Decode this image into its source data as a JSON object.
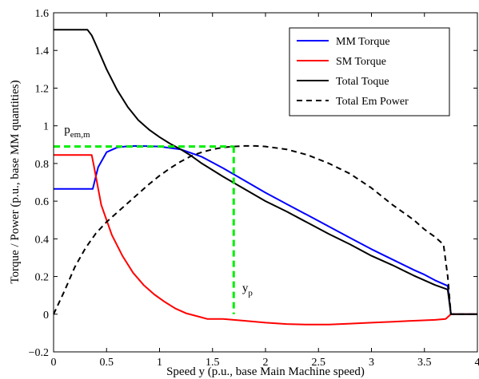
{
  "chart_data": {
    "type": "line",
    "xlabel": "Speed y (p.u., base Main Machine speed)",
    "ylabel": "Torque / Power (p.u., base MM quantities)",
    "xlim": [
      0,
      4
    ],
    "ylim": [
      -0.2,
      1.6
    ],
    "xticks": [
      0,
      0.5,
      1,
      1.5,
      2,
      2.5,
      3,
      3.5,
      4
    ],
    "yticks": [
      -0.2,
      0,
      0.2,
      0.4,
      0.6,
      0.8,
      1,
      1.2,
      1.4,
      1.6
    ],
    "xtick_labels": [
      "0",
      "0.5",
      "1",
      "1.5",
      "2",
      "2.5",
      "3",
      "3.5",
      "4"
    ],
    "ytick_labels": [
      "−0.2",
      "0",
      "0.2",
      "0.4",
      "0.6",
      "0.8",
      "1",
      "1.2",
      "1.4",
      "1.6"
    ],
    "grid": false,
    "legend_position": "top-right",
    "series": [
      {
        "name": "MM Torque",
        "color": "#0000ff",
        "style": "solid",
        "points": [
          [
            0,
            0.665
          ],
          [
            0.37,
            0.665
          ],
          [
            0.42,
            0.78
          ],
          [
            0.5,
            0.86
          ],
          [
            0.6,
            0.885
          ],
          [
            0.7,
            0.892
          ],
          [
            0.8,
            0.893
          ],
          [
            1.0,
            0.89
          ],
          [
            1.2,
            0.875
          ],
          [
            1.4,
            0.835
          ],
          [
            1.6,
            0.775
          ],
          [
            1.8,
            0.71
          ],
          [
            2.0,
            0.645
          ],
          [
            2.2,
            0.585
          ],
          [
            2.4,
            0.525
          ],
          [
            2.6,
            0.465
          ],
          [
            2.8,
            0.405
          ],
          [
            3.0,
            0.345
          ],
          [
            3.2,
            0.29
          ],
          [
            3.4,
            0.235
          ],
          [
            3.5,
            0.21
          ],
          [
            3.6,
            0.18
          ],
          [
            3.7,
            0.155
          ],
          [
            3.72,
            0.15
          ],
          [
            3.75,
            0.0
          ],
          [
            4.0,
            0.0
          ]
        ]
      },
      {
        "name": "SM Torque",
        "color": "#ff0000",
        "style": "solid",
        "points": [
          [
            0,
            0.845
          ],
          [
            0.36,
            0.845
          ],
          [
            0.38,
            0.79
          ],
          [
            0.45,
            0.58
          ],
          [
            0.55,
            0.42
          ],
          [
            0.65,
            0.31
          ],
          [
            0.75,
            0.22
          ],
          [
            0.85,
            0.155
          ],
          [
            0.95,
            0.105
          ],
          [
            1.05,
            0.065
          ],
          [
            1.15,
            0.03
          ],
          [
            1.25,
            0.005
          ],
          [
            1.35,
            -0.01
          ],
          [
            1.45,
            -0.025
          ],
          [
            1.6,
            -0.025
          ],
          [
            1.8,
            -0.035
          ],
          [
            2.0,
            -0.045
          ],
          [
            2.2,
            -0.052
          ],
          [
            2.4,
            -0.055
          ],
          [
            2.6,
            -0.055
          ],
          [
            2.8,
            -0.05
          ],
          [
            3.0,
            -0.045
          ],
          [
            3.2,
            -0.04
          ],
          [
            3.4,
            -0.035
          ],
          [
            3.6,
            -0.03
          ],
          [
            3.7,
            -0.025
          ],
          [
            3.75,
            0.0
          ],
          [
            4.0,
            0.0
          ]
        ]
      },
      {
        "name": "Total Toque",
        "color": "#000000",
        "style": "solid",
        "points": [
          [
            0,
            1.51
          ],
          [
            0.32,
            1.51
          ],
          [
            0.36,
            1.48
          ],
          [
            0.4,
            1.43
          ],
          [
            0.5,
            1.3
          ],
          [
            0.6,
            1.19
          ],
          [
            0.7,
            1.1
          ],
          [
            0.8,
            1.03
          ],
          [
            0.9,
            0.98
          ],
          [
            1.0,
            0.94
          ],
          [
            1.1,
            0.905
          ],
          [
            1.2,
            0.875
          ],
          [
            1.3,
            0.84
          ],
          [
            1.4,
            0.8
          ],
          [
            1.6,
            0.73
          ],
          [
            1.8,
            0.665
          ],
          [
            2.0,
            0.6
          ],
          [
            2.2,
            0.545
          ],
          [
            2.4,
            0.485
          ],
          [
            2.6,
            0.425
          ],
          [
            2.8,
            0.37
          ],
          [
            3.0,
            0.31
          ],
          [
            3.2,
            0.26
          ],
          [
            3.4,
            0.205
          ],
          [
            3.5,
            0.18
          ],
          [
            3.6,
            0.155
          ],
          [
            3.7,
            0.135
          ],
          [
            3.72,
            0.13
          ],
          [
            3.75,
            0.0
          ],
          [
            4.0,
            0.0
          ]
        ]
      },
      {
        "name": "Total Em Power",
        "color": "#000000",
        "style": "dashed",
        "points": [
          [
            0,
            0.0
          ],
          [
            0.1,
            0.12
          ],
          [
            0.2,
            0.25
          ],
          [
            0.3,
            0.35
          ],
          [
            0.4,
            0.43
          ],
          [
            0.5,
            0.49
          ],
          [
            0.6,
            0.54
          ],
          [
            0.7,
            0.59
          ],
          [
            0.8,
            0.64
          ],
          [
            0.9,
            0.69
          ],
          [
            1.0,
            0.735
          ],
          [
            1.1,
            0.775
          ],
          [
            1.2,
            0.81
          ],
          [
            1.3,
            0.84
          ],
          [
            1.4,
            0.86
          ],
          [
            1.5,
            0.875
          ],
          [
            1.6,
            0.885
          ],
          [
            1.7,
            0.89
          ],
          [
            1.8,
            0.893
          ],
          [
            1.9,
            0.893
          ],
          [
            2.0,
            0.89
          ],
          [
            2.2,
            0.875
          ],
          [
            2.4,
            0.845
          ],
          [
            2.6,
            0.8
          ],
          [
            2.8,
            0.745
          ],
          [
            3.0,
            0.67
          ],
          [
            3.2,
            0.58
          ],
          [
            3.4,
            0.5
          ],
          [
            3.5,
            0.45
          ],
          [
            3.6,
            0.41
          ],
          [
            3.68,
            0.37
          ],
          [
            3.72,
            0.2
          ],
          [
            3.75,
            0.0
          ],
          [
            4.0,
            0.0
          ]
        ]
      }
    ],
    "guides": {
      "color": "#00ee00",
      "horizontal": {
        "y": 0.89,
        "x_from": 0,
        "x_to": 1.7
      },
      "vertical": {
        "x": 1.7,
        "y_from": 0,
        "y_to": 0.89
      }
    },
    "annotations": {
      "pem": {
        "main": "p",
        "sub": "em,m",
        "x": 0.1,
        "y": 0.96
      },
      "yp": {
        "main": "y",
        "sub": "p",
        "x": 1.78,
        "y": 0.12
      }
    }
  }
}
